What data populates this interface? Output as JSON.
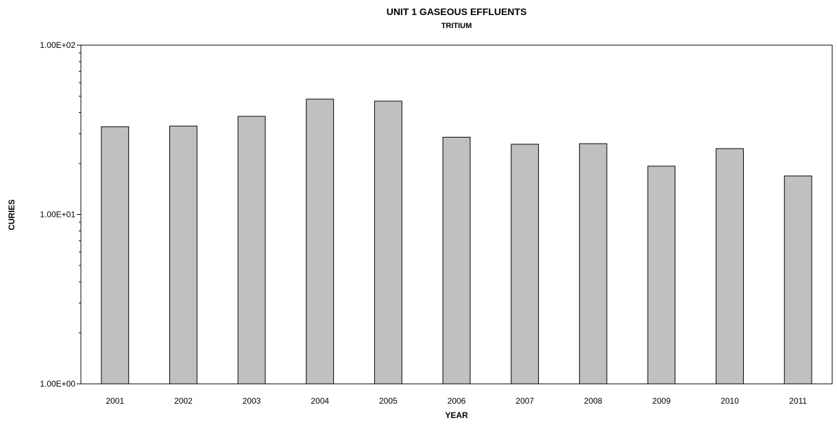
{
  "chart_data": {
    "type": "bar",
    "title": "UNIT 1 GASEOUS EFFLUENTS",
    "subtitle": "TRITIUM",
    "xlabel": "YEAR",
    "ylabel": "CURIES",
    "y_scale": "log",
    "ylim": [
      1,
      100
    ],
    "y_tick_labels": [
      "1.00E+00",
      "1.00E+01",
      "1.00E+02"
    ],
    "grid": false,
    "legend": "none",
    "categories": [
      "2001",
      "2002",
      "2003",
      "2004",
      "2005",
      "2006",
      "2007",
      "2008",
      "2009",
      "2010",
      "2011"
    ],
    "values": [
      33.0,
      33.3,
      38.0,
      48.0,
      46.7,
      28.6,
      26.0,
      26.2,
      19.3,
      24.5,
      16.9
    ],
    "bar_color": "#c0c0c0",
    "bar_border_color": "#000000"
  }
}
